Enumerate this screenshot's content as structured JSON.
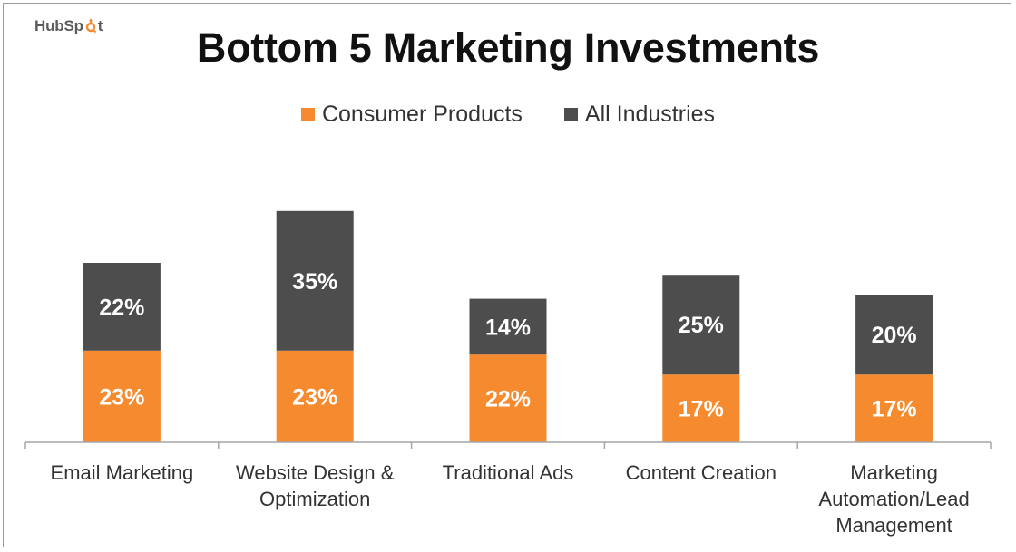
{
  "logo": {
    "text_left": "HubSp",
    "text_right": "t"
  },
  "chart_data": {
    "type": "bar",
    "stacked": true,
    "title": "Bottom 5 Marketing Investments",
    "categories": [
      [
        "Email Marketing"
      ],
      [
        "Website Design &",
        "Optimization"
      ],
      [
        "Traditional Ads"
      ],
      [
        "Content Creation"
      ],
      [
        "Marketing",
        "Automation/Lead",
        "Management"
      ]
    ],
    "series": [
      {
        "name": "Consumer Products",
        "color": "#F68A2E",
        "values": [
          23,
          23,
          22,
          17,
          17
        ],
        "labels": [
          "23%",
          "23%",
          "22%",
          "17%",
          "17%"
        ]
      },
      {
        "name": "All Industries",
        "color": "#4D4D4D",
        "values": [
          22,
          35,
          14,
          25,
          20
        ],
        "labels": [
          "22%",
          "35%",
          "14%",
          "25%",
          "20%"
        ]
      }
    ],
    "ylim": [
      0,
      62
    ],
    "grid": false,
    "legend_position": "top-center",
    "axis_color": "#A6A6A6"
  }
}
